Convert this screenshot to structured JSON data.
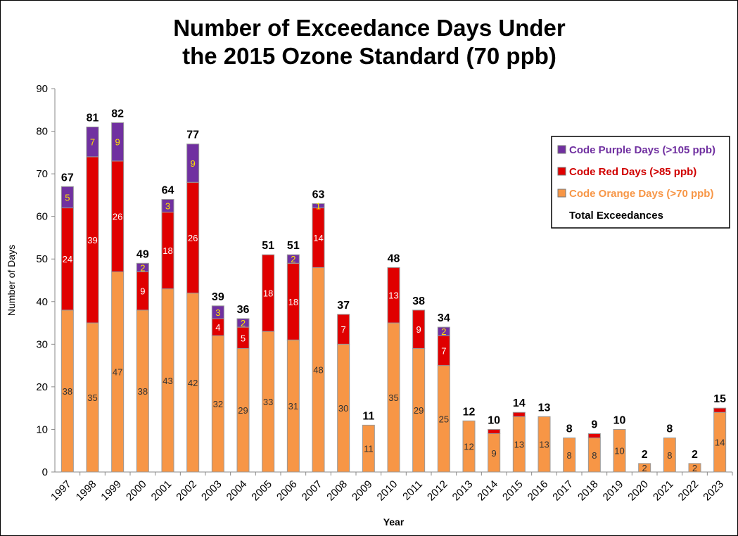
{
  "chart_data": {
    "type": "bar",
    "stacked": true,
    "title": [
      "Number of Exceedance Days Under",
      "the 2015 Ozone Standard (70 ppb)"
    ],
    "xlabel": "Year",
    "ylabel": "Number of Days",
    "ylim": [
      0,
      90
    ],
    "yticks": [
      0,
      10,
      20,
      30,
      40,
      50,
      60,
      70,
      80,
      90
    ],
    "grid": false,
    "legend_placement": "top-right",
    "categories": [
      "1997",
      "1998",
      "1999",
      "2000",
      "2001",
      "2002",
      "2003",
      "2004",
      "2005",
      "2006",
      "2007",
      "2008",
      "2009",
      "2010",
      "2011",
      "2012",
      "2013",
      "2014",
      "2015",
      "2016",
      "2017",
      "2018",
      "2019",
      "2020",
      "2021",
      "2022",
      "2023"
    ],
    "series": [
      {
        "name": "Code Orange Days (>70 ppb)",
        "color": "#f79646",
        "values": [
          38,
          35,
          47,
          38,
          43,
          42,
          32,
          29,
          33,
          31,
          48,
          30,
          11,
          35,
          29,
          25,
          12,
          9,
          13,
          13,
          8,
          8,
          10,
          2,
          8,
          2,
          14
        ]
      },
      {
        "name": "Code Red Days (>85 ppb)",
        "color": "#e00000",
        "values": [
          24,
          39,
          26,
          9,
          18,
          26,
          4,
          5,
          18,
          18,
          14,
          7,
          0,
          13,
          9,
          7,
          0,
          1,
          1,
          0,
          0,
          1,
          0,
          0,
          0,
          0,
          1
        ]
      },
      {
        "name": "Code Purple Days (>105 ppb)",
        "color": "#7030a0",
        "values": [
          5,
          7,
          9,
          2,
          3,
          9,
          3,
          2,
          0,
          2,
          1,
          0,
          0,
          0,
          0,
          2,
          0,
          0,
          0,
          0,
          0,
          0,
          0,
          0,
          0,
          0,
          0
        ]
      }
    ],
    "totals_name": "Total Exceedances",
    "totals": [
      67,
      81,
      82,
      49,
      64,
      77,
      39,
      36,
      51,
      51,
      63,
      37,
      11,
      48,
      38,
      34,
      12,
      10,
      14,
      13,
      8,
      9,
      10,
      2,
      8,
      2,
      15
    ]
  }
}
